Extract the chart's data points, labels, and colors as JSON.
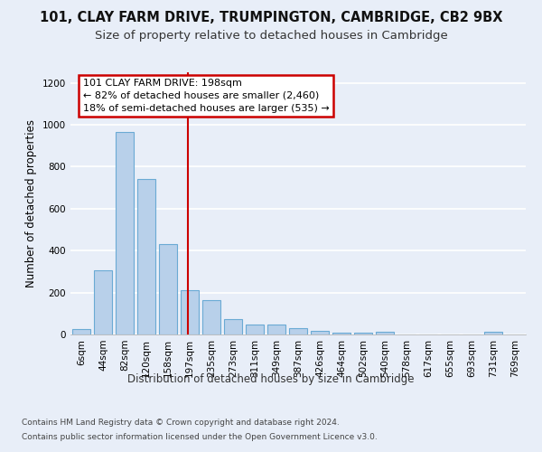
{
  "title1": "101, CLAY FARM DRIVE, TRUMPINGTON, CAMBRIDGE, CB2 9BX",
  "title2": "Size of property relative to detached houses in Cambridge",
  "xlabel": "Distribution of detached houses by size in Cambridge",
  "ylabel": "Number of detached properties",
  "categories": [
    "6sqm",
    "44sqm",
    "82sqm",
    "120sqm",
    "158sqm",
    "197sqm",
    "235sqm",
    "273sqm",
    "311sqm",
    "349sqm",
    "387sqm",
    "426sqm",
    "464sqm",
    "502sqm",
    "540sqm",
    "578sqm",
    "617sqm",
    "655sqm",
    "693sqm",
    "731sqm",
    "769sqm"
  ],
  "values": [
    25,
    305,
    965,
    740,
    430,
    210,
    165,
    75,
    48,
    48,
    32,
    18,
    8,
    8,
    15,
    2,
    2,
    2,
    2,
    12,
    2
  ],
  "bar_color": "#b8d0ea",
  "bar_edge_color": "#6aaad4",
  "vline_color": "#cc0000",
  "vline_x": 4.925,
  "annotation_text": "101 CLAY FARM DRIVE: 198sqm\n← 82% of detached houses are smaller (2,460)\n18% of semi-detached houses are larger (535) →",
  "annotation_box_color": "#ffffff",
  "annotation_box_edge": "#cc0000",
  "ylim": [
    0,
    1250
  ],
  "yticks": [
    0,
    200,
    400,
    600,
    800,
    1000,
    1200
  ],
  "footnote1": "Contains HM Land Registry data © Crown copyright and database right 2024.",
  "footnote2": "Contains public sector information licensed under the Open Government Licence v3.0.",
  "bg_color": "#e8eef8",
  "grid_color": "#ffffff",
  "title1_fontsize": 10.5,
  "title2_fontsize": 9.5,
  "axis_label_fontsize": 8.5,
  "tick_fontsize": 7.5,
  "footnote_fontsize": 6.5,
  "annot_fontsize": 8
}
